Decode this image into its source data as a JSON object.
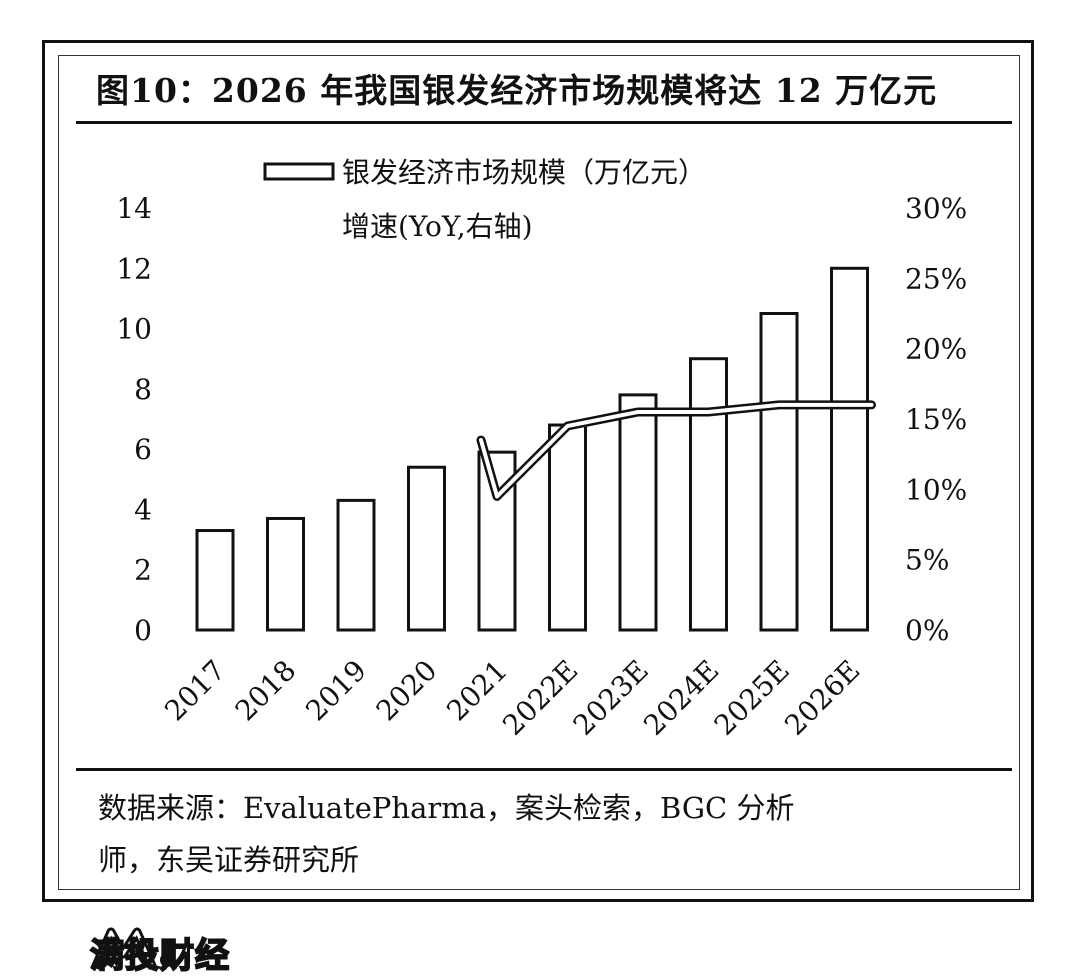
{
  "figure": {
    "title": "图10：2026 年我国银发经济市场规模将达 12 万亿元",
    "source_line1": "数据来源：EvaluatePharma，案头检索，BGC 分析",
    "source_line2": "师，东吴证券研究所"
  },
  "watermark": {
    "text": "满投财经"
  },
  "chart_data": {
    "type": "bar",
    "categories": [
      "2017",
      "2018",
      "2019",
      "2020",
      "2021",
      "2022E",
      "2023E",
      "2024E",
      "2025E",
      "2026E"
    ],
    "series": [
      {
        "name": "银发经济市场规模（万亿元）",
        "type": "bar",
        "axis": "left",
        "values": [
          3.3,
          3.7,
          4.3,
          5.4,
          5.9,
          6.8,
          7.8,
          9.0,
          10.5,
          12.0
        ]
      },
      {
        "name": "增速(YoY,右轴)",
        "type": "line",
        "axis": "right",
        "values": [
          null,
          null,
          null,
          null,
          0.095,
          0.145,
          0.155,
          0.155,
          0.16,
          0.16
        ]
      }
    ],
    "y_left": {
      "min": 0,
      "max": 14,
      "ticks": [
        "0",
        "2",
        "4",
        "6",
        "8",
        "10",
        "12",
        "14"
      ]
    },
    "y_right": {
      "min": 0,
      "max": 0.3,
      "ticks": [
        "0%",
        "5%",
        "10%",
        "15%",
        "20%",
        "25%",
        "30%"
      ]
    },
    "legend_position": "top",
    "grid": false,
    "colors": {
      "bar_fill": "#ffffff",
      "bar_stroke": "#111111",
      "line": "#ffffff"
    }
  }
}
